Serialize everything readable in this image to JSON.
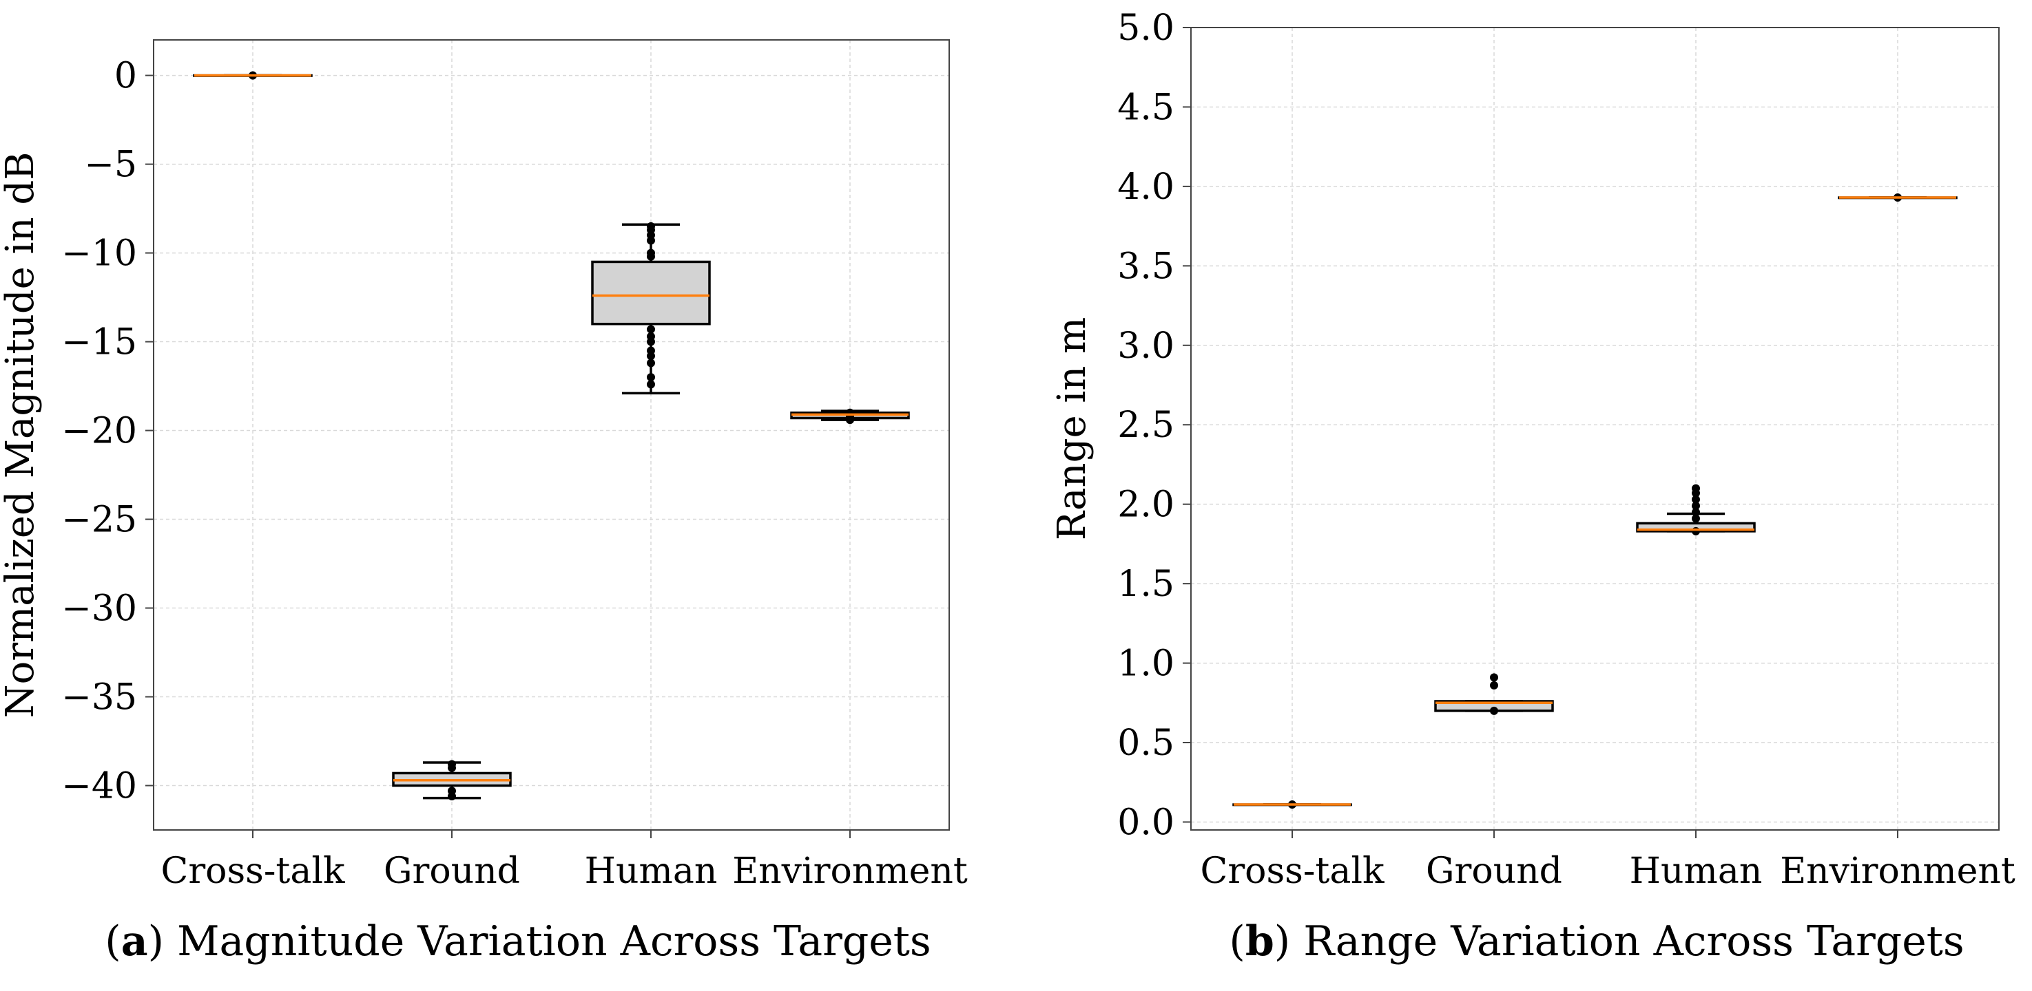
{
  "chart_data": [
    {
      "type": "box",
      "caption": {
        "letter": "a",
        "text": "Magnitude Variation Across Targets"
      },
      "xlabel": "",
      "ylabel": "Normalized Magnitude in dB",
      "ylim": [
        -42.5,
        2
      ],
      "yticks": [
        0,
        -5,
        -10,
        -15,
        -20,
        -25,
        -30,
        -35,
        -40
      ],
      "ytick_labels": [
        "0",
        "−5",
        "−10",
        "−15",
        "−20",
        "−25",
        "−30",
        "−35",
        "−40"
      ],
      "grid": true,
      "categories": [
        "Cross-talk",
        "Ground",
        "Human",
        "Environment"
      ],
      "boxes": [
        {
          "whislo": 0,
          "q1": 0,
          "med": 0,
          "q3": 0,
          "whishi": 0,
          "fliers": [
            0
          ]
        },
        {
          "whislo": -40.7,
          "q1": -40.0,
          "med": -39.7,
          "q3": -39.3,
          "whishi": -38.7,
          "fliers": [
            -38.8,
            -39.0,
            -40.3,
            -40.6
          ]
        },
        {
          "whislo": -17.9,
          "q1": -14.0,
          "med": -12.4,
          "q3": -10.5,
          "whishi": -8.4,
          "fliers": [
            -8.5,
            -8.7,
            -9.0,
            -9.3,
            -10.0,
            -10.2,
            -14.3,
            -14.7,
            -15.0,
            -15.5,
            -15.8,
            -16.2,
            -17.0,
            -17.4
          ]
        },
        {
          "whislo": -19.4,
          "q1": -19.3,
          "med": -19.1,
          "q3": -19.0,
          "whishi": -18.9,
          "fliers": [
            -19.0,
            -19.2,
            -19.4
          ]
        }
      ]
    },
    {
      "type": "box",
      "caption": {
        "letter": "b",
        "text": "Range Variation Across Targets"
      },
      "xlabel": "",
      "ylabel": "Range in m",
      "ylim": [
        -0.05,
        5.0
      ],
      "yticks": [
        0,
        0.5,
        1.0,
        1.5,
        2.0,
        2.5,
        3.0,
        3.5,
        4.0,
        4.5,
        5.0
      ],
      "ytick_labels": [
        "0.0",
        "0.5",
        "1.0",
        "1.5",
        "2.0",
        "2.5",
        "3.0",
        "3.5",
        "4.0",
        "4.5",
        "5.0"
      ],
      "grid": true,
      "categories": [
        "Cross-talk",
        "Ground",
        "Human",
        "Environment"
      ],
      "boxes": [
        {
          "whislo": 0.11,
          "q1": 0.11,
          "med": 0.11,
          "q3": 0.11,
          "whishi": 0.11,
          "fliers": [
            0.11
          ]
        },
        {
          "whislo": 0.7,
          "q1": 0.7,
          "med": 0.75,
          "q3": 0.76,
          "whishi": 0.76,
          "fliers": [
            0.7,
            0.86,
            0.91
          ]
        },
        {
          "whislo": 1.83,
          "q1": 1.83,
          "med": 1.84,
          "q3": 1.88,
          "whishi": 1.94,
          "fliers": [
            1.83,
            1.91,
            1.95,
            1.99,
            2.03,
            2.07,
            2.1
          ]
        },
        {
          "whislo": 3.93,
          "q1": 3.93,
          "med": 3.93,
          "q3": 3.93,
          "whishi": 3.93,
          "fliers": [
            3.93
          ]
        }
      ]
    }
  ]
}
